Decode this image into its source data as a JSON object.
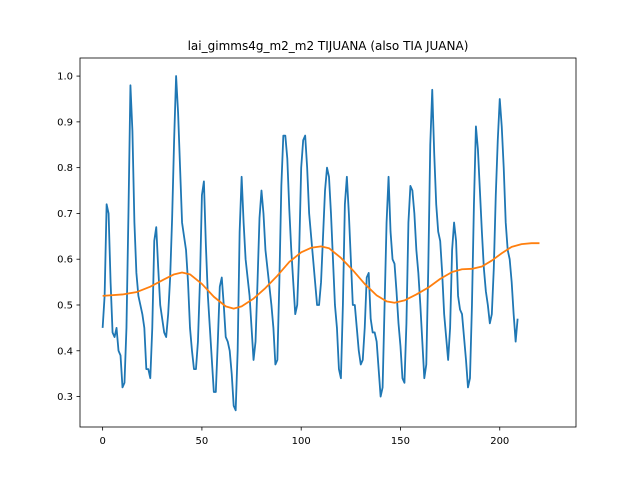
{
  "chart_data": {
    "type": "line",
    "title": "lai_gimms4g_m2_m2 TIJUANA (also TIA JUANA)",
    "xlabel": "",
    "ylabel": "",
    "xlim": [
      -11.4,
      238.4
    ],
    "ylim": [
      0.2335,
      1.0395
    ],
    "xticks": [
      0,
      50,
      100,
      150,
      200
    ],
    "xtick_labels": [
      "0",
      "50",
      "100",
      "150",
      "200"
    ],
    "yticks": [
      0.3,
      0.4,
      0.5,
      0.6,
      0.7,
      0.8,
      0.9,
      1.0
    ],
    "ytick_labels": [
      "0.3",
      "0.4",
      "0.5",
      "0.6",
      "0.7",
      "0.8",
      "0.9",
      "1.0"
    ],
    "grid": false,
    "series": [
      {
        "color": "#1f77b4",
        "points": [
          [
            0,
            0.45
          ],
          [
            1,
            0.52
          ],
          [
            2,
            0.72
          ],
          [
            3,
            0.7
          ],
          [
            4,
            0.55
          ],
          [
            5,
            0.44
          ],
          [
            6,
            0.43
          ],
          [
            7,
            0.45
          ],
          [
            8,
            0.4
          ],
          [
            9,
            0.39
          ],
          [
            10,
            0.32
          ],
          [
            11,
            0.33
          ],
          [
            12,
            0.45
          ],
          [
            13,
            0.7
          ],
          [
            14,
            0.98
          ],
          [
            15,
            0.88
          ],
          [
            16,
            0.68
          ],
          [
            17,
            0.57
          ],
          [
            18,
            0.52
          ],
          [
            19,
            0.5
          ],
          [
            20,
            0.48
          ],
          [
            21,
            0.45
          ],
          [
            22,
            0.36
          ],
          [
            23,
            0.36
          ],
          [
            24,
            0.34
          ],
          [
            25,
            0.45
          ],
          [
            26,
            0.64
          ],
          [
            27,
            0.67
          ],
          [
            28,
            0.58
          ],
          [
            29,
            0.5
          ],
          [
            30,
            0.47
          ],
          [
            31,
            0.44
          ],
          [
            32,
            0.43
          ],
          [
            33,
            0.48
          ],
          [
            34,
            0.56
          ],
          [
            35,
            0.69
          ],
          [
            36,
            0.86
          ],
          [
            37,
            1.0
          ],
          [
            38,
            0.92
          ],
          [
            39,
            0.8
          ],
          [
            40,
            0.68
          ],
          [
            41,
            0.65
          ],
          [
            42,
            0.62
          ],
          [
            43,
            0.55
          ],
          [
            44,
            0.45
          ],
          [
            45,
            0.4
          ],
          [
            46,
            0.36
          ],
          [
            47,
            0.36
          ],
          [
            48,
            0.42
          ],
          [
            49,
            0.55
          ],
          [
            50,
            0.74
          ],
          [
            51,
            0.77
          ],
          [
            52,
            0.63
          ],
          [
            53,
            0.52
          ],
          [
            54,
            0.45
          ],
          [
            55,
            0.38
          ],
          [
            56,
            0.31
          ],
          [
            57,
            0.31
          ],
          [
            58,
            0.42
          ],
          [
            59,
            0.54
          ],
          [
            60,
            0.56
          ],
          [
            61,
            0.5
          ],
          [
            62,
            0.43
          ],
          [
            63,
            0.42
          ],
          [
            64,
            0.4
          ],
          [
            65,
            0.35
          ],
          [
            66,
            0.28
          ],
          [
            67,
            0.27
          ],
          [
            68,
            0.4
          ],
          [
            69,
            0.66
          ],
          [
            70,
            0.78
          ],
          [
            71,
            0.68
          ],
          [
            72,
            0.6
          ],
          [
            73,
            0.56
          ],
          [
            74,
            0.52
          ],
          [
            75,
            0.45
          ],
          [
            76,
            0.38
          ],
          [
            77,
            0.42
          ],
          [
            78,
            0.55
          ],
          [
            79,
            0.69
          ],
          [
            80,
            0.75
          ],
          [
            81,
            0.7
          ],
          [
            82,
            0.62
          ],
          [
            83,
            0.58
          ],
          [
            84,
            0.54
          ],
          [
            85,
            0.5
          ],
          [
            86,
            0.45
          ],
          [
            87,
            0.37
          ],
          [
            88,
            0.38
          ],
          [
            89,
            0.55
          ],
          [
            90,
            0.76
          ],
          [
            91,
            0.87
          ],
          [
            92,
            0.87
          ],
          [
            93,
            0.82
          ],
          [
            94,
            0.71
          ],
          [
            95,
            0.62
          ],
          [
            96,
            0.55
          ],
          [
            97,
            0.48
          ],
          [
            98,
            0.5
          ],
          [
            99,
            0.62
          ],
          [
            100,
            0.8
          ],
          [
            101,
            0.86
          ],
          [
            102,
            0.87
          ],
          [
            103,
            0.8
          ],
          [
            104,
            0.7
          ],
          [
            105,
            0.65
          ],
          [
            106,
            0.6
          ],
          [
            107,
            0.55
          ],
          [
            108,
            0.5
          ],
          [
            109,
            0.5
          ],
          [
            110,
            0.55
          ],
          [
            111,
            0.65
          ],
          [
            112,
            0.75
          ],
          [
            113,
            0.8
          ],
          [
            114,
            0.78
          ],
          [
            115,
            0.7
          ],
          [
            116,
            0.6
          ],
          [
            117,
            0.5
          ],
          [
            118,
            0.45
          ],
          [
            119,
            0.36
          ],
          [
            120,
            0.34
          ],
          [
            121,
            0.5
          ],
          [
            122,
            0.72
          ],
          [
            123,
            0.78
          ],
          [
            124,
            0.7
          ],
          [
            125,
            0.6
          ],
          [
            126,
            0.5
          ],
          [
            127,
            0.5
          ],
          [
            128,
            0.45
          ],
          [
            129,
            0.4
          ],
          [
            130,
            0.37
          ],
          [
            131,
            0.38
          ],
          [
            132,
            0.45
          ],
          [
            133,
            0.56
          ],
          [
            134,
            0.57
          ],
          [
            135,
            0.47
          ],
          [
            136,
            0.44
          ],
          [
            137,
            0.44
          ],
          [
            138,
            0.42
          ],
          [
            139,
            0.36
          ],
          [
            140,
            0.3
          ],
          [
            141,
            0.32
          ],
          [
            142,
            0.5
          ],
          [
            143,
            0.68
          ],
          [
            144,
            0.78
          ],
          [
            145,
            0.66
          ],
          [
            146,
            0.6
          ],
          [
            147,
            0.59
          ],
          [
            148,
            0.53
          ],
          [
            149,
            0.46
          ],
          [
            150,
            0.41
          ],
          [
            151,
            0.34
          ],
          [
            152,
            0.33
          ],
          [
            153,
            0.46
          ],
          [
            154,
            0.68
          ],
          [
            155,
            0.76
          ],
          [
            156,
            0.75
          ],
          [
            157,
            0.7
          ],
          [
            158,
            0.62
          ],
          [
            159,
            0.57
          ],
          [
            160,
            0.5
          ],
          [
            161,
            0.42
          ],
          [
            162,
            0.34
          ],
          [
            163,
            0.37
          ],
          [
            164,
            0.58
          ],
          [
            165,
            0.85
          ],
          [
            166,
            0.97
          ],
          [
            167,
            0.83
          ],
          [
            168,
            0.72
          ],
          [
            169,
            0.66
          ],
          [
            170,
            0.64
          ],
          [
            171,
            0.57
          ],
          [
            172,
            0.48
          ],
          [
            173,
            0.43
          ],
          [
            174,
            0.38
          ],
          [
            175,
            0.45
          ],
          [
            176,
            0.62
          ],
          [
            177,
            0.68
          ],
          [
            178,
            0.64
          ],
          [
            179,
            0.52
          ],
          [
            180,
            0.49
          ],
          [
            181,
            0.48
          ],
          [
            182,
            0.43
          ],
          [
            183,
            0.38
          ],
          [
            184,
            0.32
          ],
          [
            185,
            0.34
          ],
          [
            186,
            0.5
          ],
          [
            187,
            0.72
          ],
          [
            188,
            0.89
          ],
          [
            189,
            0.84
          ],
          [
            190,
            0.75
          ],
          [
            191,
            0.66
          ],
          [
            192,
            0.58
          ],
          [
            193,
            0.53
          ],
          [
            194,
            0.5
          ],
          [
            195,
            0.46
          ],
          [
            196,
            0.48
          ],
          [
            197,
            0.58
          ],
          [
            198,
            0.74
          ],
          [
            199,
            0.86
          ],
          [
            200,
            0.95
          ],
          [
            201,
            0.89
          ],
          [
            202,
            0.8
          ],
          [
            203,
            0.68
          ],
          [
            204,
            0.62
          ],
          [
            205,
            0.6
          ],
          [
            206,
            0.55
          ],
          [
            207,
            0.48
          ],
          [
            208,
            0.42
          ],
          [
            209,
            0.47
          ]
        ]
      },
      {
        "color": "#ff7f0e",
        "points": [
          [
            0,
            0.52
          ],
          [
            10,
            0.523
          ],
          [
            17,
            0.528
          ],
          [
            24,
            0.54
          ],
          [
            31,
            0.556
          ],
          [
            36,
            0.567
          ],
          [
            40,
            0.571
          ],
          [
            44,
            0.567
          ],
          [
            50,
            0.546
          ],
          [
            56,
            0.518
          ],
          [
            62,
            0.497
          ],
          [
            66,
            0.492
          ],
          [
            70,
            0.497
          ],
          [
            76,
            0.514
          ],
          [
            82,
            0.537
          ],
          [
            88,
            0.564
          ],
          [
            94,
            0.594
          ],
          [
            100,
            0.615
          ],
          [
            105,
            0.625
          ],
          [
            110,
            0.628
          ],
          [
            114,
            0.624
          ],
          [
            120,
            0.603
          ],
          [
            126,
            0.576
          ],
          [
            132,
            0.546
          ],
          [
            138,
            0.521
          ],
          [
            143,
            0.508
          ],
          [
            147,
            0.505
          ],
          [
            152,
            0.51
          ],
          [
            158,
            0.523
          ],
          [
            164,
            0.538
          ],
          [
            170,
            0.557
          ],
          [
            176,
            0.572
          ],
          [
            181,
            0.578
          ],
          [
            186,
            0.579
          ],
          [
            191,
            0.584
          ],
          [
            196,
            0.597
          ],
          [
            201,
            0.613
          ],
          [
            206,
            0.627
          ],
          [
            211,
            0.633
          ],
          [
            216,
            0.635
          ],
          [
            220,
            0.635
          ]
        ]
      }
    ]
  }
}
